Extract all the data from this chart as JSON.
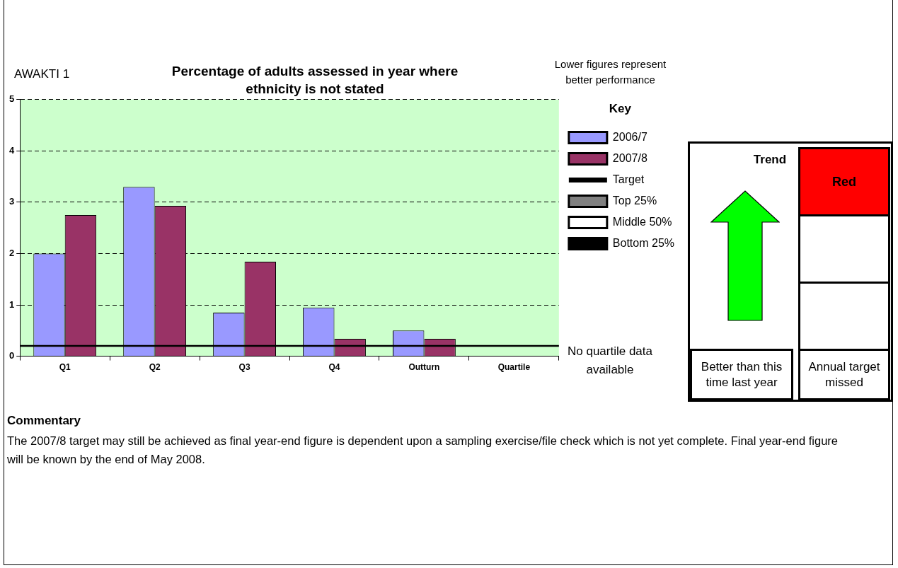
{
  "chart_data": {
    "type": "bar",
    "title": "Percentage of adults assessed in year where ethnicity is not stated",
    "categories": [
      "Q1",
      "Q2",
      "Q3",
      "Q4",
      "Outturn",
      "Quartile"
    ],
    "series": [
      {
        "name": "2006/7",
        "color": "#9999ff",
        "values": [
          2.0,
          3.3,
          0.85,
          0.95,
          0.5,
          null
        ]
      },
      {
        "name": "2007/8",
        "color": "#993366",
        "values": [
          2.75,
          2.93,
          1.84,
          0.34,
          0.34,
          null
        ]
      },
      {
        "name": "Top 25%",
        "color": "#808080",
        "values": [
          null,
          null,
          null,
          null,
          null,
          null
        ]
      },
      {
        "name": "Middle 50%",
        "color": "#ffffff",
        "values": [
          null,
          null,
          null,
          null,
          null,
          null
        ]
      },
      {
        "name": "Bottom 25%",
        "color": "#000000",
        "values": [
          null,
          null,
          null,
          null,
          null,
          null
        ]
      }
    ],
    "ylim": [
      0,
      5
    ],
    "yticks": [
      0,
      1,
      2,
      3,
      4,
      5
    ],
    "grid": "y",
    "legend": "right",
    "legend_title": "Key",
    "ref_lines": [
      {
        "axis": "y",
        "value": 0.2,
        "label": "Target",
        "color": "#000000"
      }
    ],
    "annotations": [
      "AWAKTI 1",
      "Lower figures represent better performance",
      "No quartile data available",
      "Trend",
      "Red",
      "Better than this time last year",
      "Annual target missed",
      "Commentary",
      "The 2007/8 target may still be achieved as final year-end figure is dependent upon a sampling exercise/file check which is not yet complete.  Final year-end figure will be known by the end of May 2008."
    ]
  }
}
